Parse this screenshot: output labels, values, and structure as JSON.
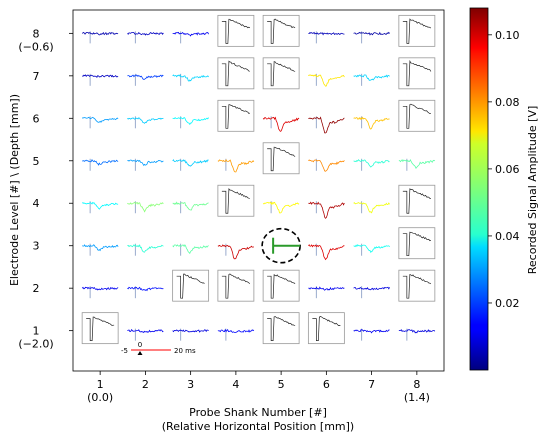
{
  "chart_data": {
    "type": "heatmap",
    "title": "",
    "xlabel_line1": "Probe Shank Number [#]",
    "xlabel_line2": "(Relative Horizontal Position [mm])",
    "ylabel": "Electrode Level [#] \\ (Depth [mm])",
    "x_ticks": [
      {
        "value": 1,
        "label": "1",
        "sublabel": "(0.0)"
      },
      {
        "value": 2,
        "label": "2",
        "sublabel": ""
      },
      {
        "value": 3,
        "label": "3",
        "sublabel": ""
      },
      {
        "value": 4,
        "label": "4",
        "sublabel": ""
      },
      {
        "value": 5,
        "label": "5",
        "sublabel": ""
      },
      {
        "value": 6,
        "label": "6",
        "sublabel": ""
      },
      {
        "value": 7,
        "label": "7",
        "sublabel": ""
      },
      {
        "value": 8,
        "label": "8",
        "sublabel": "(1.4)"
      }
    ],
    "y_ticks": [
      {
        "value": 1,
        "label": "1",
        "sublabel": "(−2.0)"
      },
      {
        "value": 2,
        "label": "2",
        "sublabel": ""
      },
      {
        "value": 3,
        "label": "3",
        "sublabel": ""
      },
      {
        "value": 4,
        "label": "4",
        "sublabel": ""
      },
      {
        "value": 5,
        "label": "5",
        "sublabel": ""
      },
      {
        "value": 6,
        "label": "6",
        "sublabel": ""
      },
      {
        "value": 7,
        "label": "7",
        "sublabel": ""
      },
      {
        "value": 8,
        "label": "8",
        "sublabel": "(−0.6)"
      }
    ],
    "xlim": [
      0.4,
      8.6
    ],
    "ylim": [
      0.05,
      8.55
    ],
    "colorbar": {
      "label": "Recorded Signal Amplitude [V]",
      "min": 0.0,
      "max": 0.108,
      "ticks": [
        {
          "value": 0.02,
          "label": "0.02"
        },
        {
          "value": 0.04,
          "label": "0.04"
        },
        {
          "value": 0.06,
          "label": "0.06"
        },
        {
          "value": 0.08,
          "label": "0.08"
        },
        {
          "value": 0.1,
          "label": "0.10"
        }
      ]
    },
    "stimulation_site": {
      "shank": 5,
      "level": 3
    },
    "scale_bar": {
      "left_label": "-5",
      "zero_label": "0",
      "right_label": "20 ms"
    },
    "cells": [
      {
        "shank": 1,
        "level": 8,
        "kind": "trace",
        "amplitude": 0.005
      },
      {
        "shank": 2,
        "level": 8,
        "kind": "trace",
        "amplitude": 0.007
      },
      {
        "shank": 3,
        "level": 8,
        "kind": "trace",
        "amplitude": 0.012
      },
      {
        "shank": 4,
        "level": 8,
        "kind": "artifact"
      },
      {
        "shank": 5,
        "level": 8,
        "kind": "artifact"
      },
      {
        "shank": 6,
        "level": 8,
        "kind": "trace",
        "amplitude": 0.006
      },
      {
        "shank": 7,
        "level": 8,
        "kind": "trace",
        "amplitude": 0.004
      },
      {
        "shank": 8,
        "level": 8,
        "kind": "artifact"
      },
      {
        "shank": 1,
        "level": 7,
        "kind": "trace",
        "amplitude": 0.007
      },
      {
        "shank": 2,
        "level": 7,
        "kind": "trace",
        "amplitude": 0.02
      },
      {
        "shank": 3,
        "level": 7,
        "kind": "trace",
        "amplitude": 0.036
      },
      {
        "shank": 4,
        "level": 7,
        "kind": "artifact"
      },
      {
        "shank": 5,
        "level": 7,
        "kind": "artifact"
      },
      {
        "shank": 6,
        "level": 7,
        "kind": "trace",
        "amplitude": 0.07
      },
      {
        "shank": 7,
        "level": 7,
        "kind": "trace",
        "amplitude": 0.036
      },
      {
        "shank": 8,
        "level": 7,
        "kind": "artifact"
      },
      {
        "shank": 1,
        "level": 6,
        "kind": "trace",
        "amplitude": 0.03
      },
      {
        "shank": 2,
        "level": 6,
        "kind": "trace",
        "amplitude": 0.035
      },
      {
        "shank": 3,
        "level": 6,
        "kind": "trace",
        "amplitude": 0.04
      },
      {
        "shank": 4,
        "level": 6,
        "kind": "artifact"
      },
      {
        "shank": 5,
        "level": 6,
        "kind": "trace",
        "amplitude": 0.098
      },
      {
        "shank": 6,
        "level": 6,
        "kind": "trace",
        "amplitude": 0.106
      },
      {
        "shank": 7,
        "level": 6,
        "kind": "trace",
        "amplitude": 0.074
      },
      {
        "shank": 8,
        "level": 6,
        "kind": "artifact"
      },
      {
        "shank": 1,
        "level": 5,
        "kind": "trace",
        "amplitude": 0.025
      },
      {
        "shank": 2,
        "level": 5,
        "kind": "trace",
        "amplitude": 0.03
      },
      {
        "shank": 3,
        "level": 5,
        "kind": "trace",
        "amplitude": 0.035
      },
      {
        "shank": 4,
        "level": 5,
        "kind": "trace",
        "amplitude": 0.078
      },
      {
        "shank": 5,
        "level": 5,
        "kind": "artifact"
      },
      {
        "shank": 6,
        "level": 5,
        "kind": "trace",
        "amplitude": 0.08
      },
      {
        "shank": 7,
        "level": 5,
        "kind": "trace",
        "amplitude": 0.045
      },
      {
        "shank": 8,
        "level": 5,
        "kind": "trace",
        "amplitude": 0.05
      },
      {
        "shank": 1,
        "level": 4,
        "kind": "trace",
        "amplitude": 0.04
      },
      {
        "shank": 2,
        "level": 4,
        "kind": "trace",
        "amplitude": 0.055
      },
      {
        "shank": 3,
        "level": 4,
        "kind": "trace",
        "amplitude": 0.052
      },
      {
        "shank": 4,
        "level": 4,
        "kind": "artifact"
      },
      {
        "shank": 5,
        "level": 4,
        "kind": "trace",
        "amplitude": 0.068
      },
      {
        "shank": 6,
        "level": 4,
        "kind": "trace",
        "amplitude": 0.103
      },
      {
        "shank": 7,
        "level": 4,
        "kind": "trace",
        "amplitude": 0.066
      },
      {
        "shank": 8,
        "level": 4,
        "kind": "artifact"
      },
      {
        "shank": 1,
        "level": 3,
        "kind": "trace",
        "amplitude": 0.03
      },
      {
        "shank": 2,
        "level": 3,
        "kind": "trace",
        "amplitude": 0.045
      },
      {
        "shank": 3,
        "level": 3,
        "kind": "trace",
        "amplitude": 0.05
      },
      {
        "shank": 4,
        "level": 3,
        "kind": "trace",
        "amplitude": 0.1
      },
      {
        "shank": 5,
        "level": 3,
        "kind": "stimulation"
      },
      {
        "shank": 6,
        "level": 3,
        "kind": "trace",
        "amplitude": 0.098
      },
      {
        "shank": 7,
        "level": 3,
        "kind": "trace",
        "amplitude": 0.042
      },
      {
        "shank": 8,
        "level": 3,
        "kind": "artifact"
      },
      {
        "shank": 1,
        "level": 2,
        "kind": "trace",
        "amplitude": 0.012
      },
      {
        "shank": 2,
        "level": 2,
        "kind": "trace",
        "amplitude": 0.015
      },
      {
        "shank": 3,
        "level": 2,
        "kind": "artifact"
      },
      {
        "shank": 4,
        "level": 2,
        "kind": "artifact"
      },
      {
        "shank": 5,
        "level": 2,
        "kind": "artifact"
      },
      {
        "shank": 6,
        "level": 2,
        "kind": "trace",
        "amplitude": 0.012
      },
      {
        "shank": 7,
        "level": 2,
        "kind": "trace",
        "amplitude": 0.01
      },
      {
        "shank": 8,
        "level": 2,
        "kind": "artifact"
      },
      {
        "shank": 1,
        "level": 1,
        "kind": "artifact"
      },
      {
        "shank": 2,
        "level": 1,
        "kind": "trace",
        "amplitude": 0.012
      },
      {
        "shank": 3,
        "level": 1,
        "kind": "trace",
        "amplitude": 0.01
      },
      {
        "shank": 4,
        "level": 1,
        "kind": "trace",
        "amplitude": 0.014
      },
      {
        "shank": 5,
        "level": 1,
        "kind": "artifact"
      },
      {
        "shank": 6,
        "level": 1,
        "kind": "artifact"
      },
      {
        "shank": 7,
        "level": 1,
        "kind": "trace",
        "amplitude": 0.012
      },
      {
        "shank": 8,
        "level": 1,
        "kind": "trace",
        "amplitude": 0.01
      }
    ]
  }
}
